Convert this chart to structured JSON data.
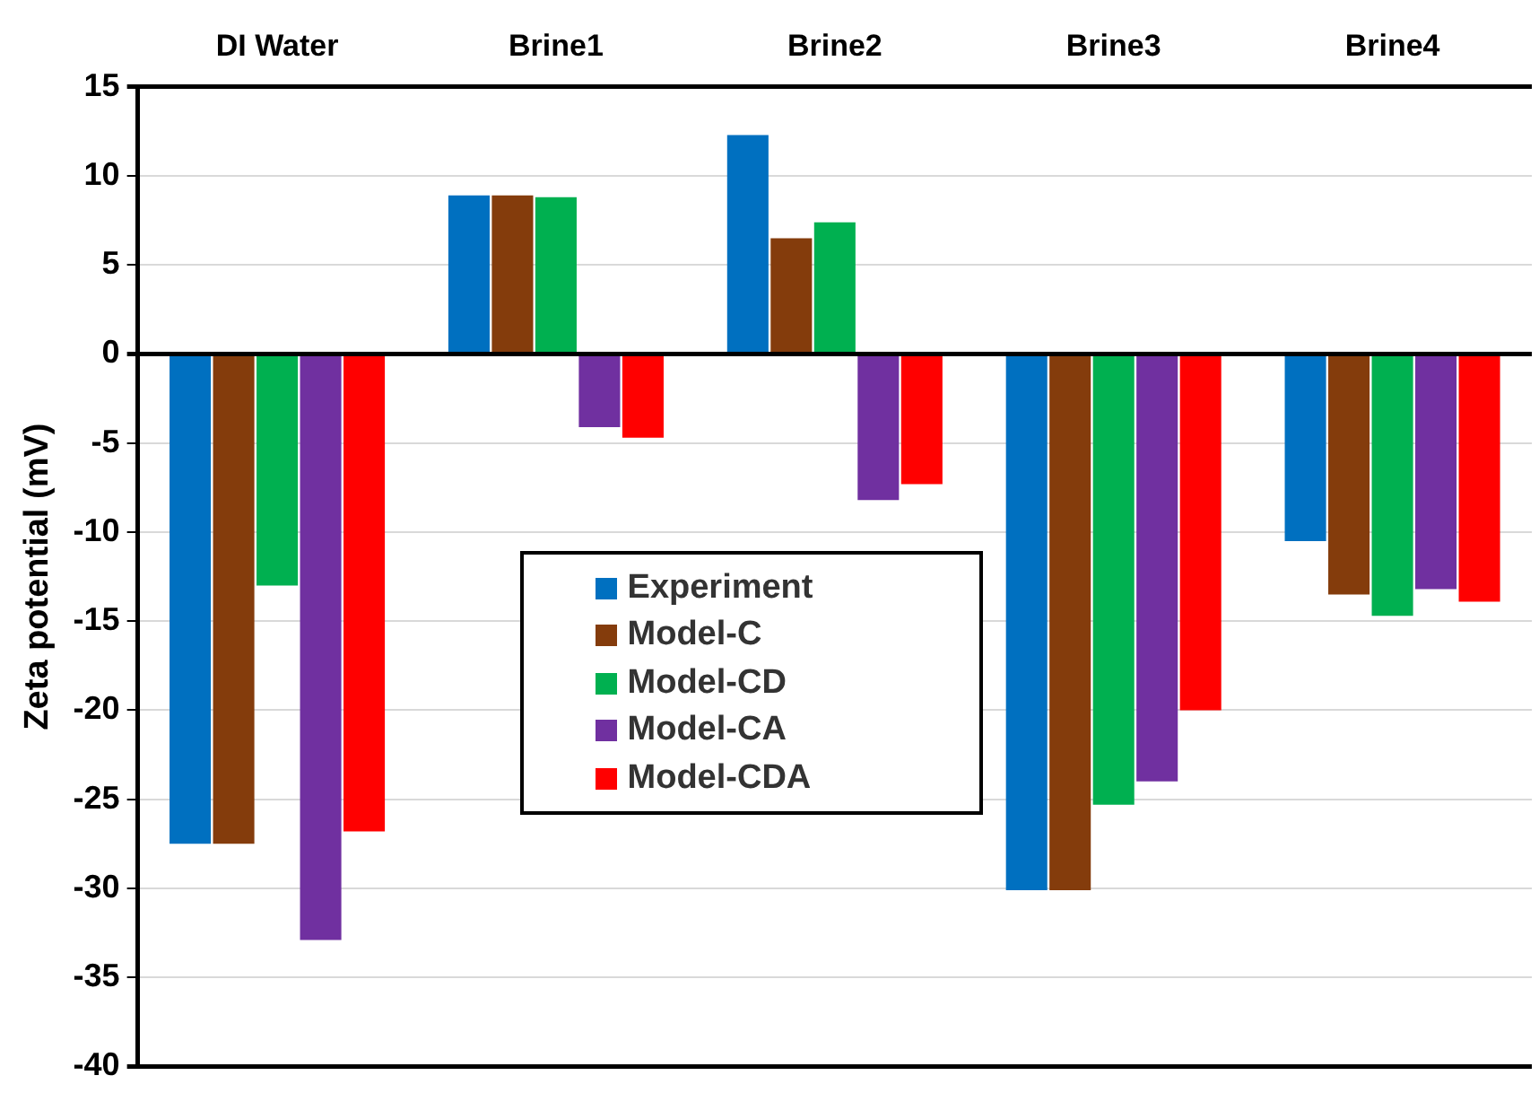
{
  "chart_data": {
    "type": "bar",
    "ylabel": "Zeta potential (mV)",
    "categories": [
      "DI Water",
      "Brine1",
      "Brine2",
      "Brine3",
      "Brine4"
    ],
    "series": [
      {
        "name": "Experiment",
        "color": "#0070c0",
        "values": [
          -27.5,
          8.9,
          12.3,
          -30.1,
          -10.5
        ]
      },
      {
        "name": "Model-C",
        "color": "#843c0c",
        "values": [
          -27.5,
          8.9,
          6.5,
          -30.1,
          -13.5
        ]
      },
      {
        "name": "Model-CD",
        "color": "#00b050",
        "values": [
          -13.0,
          8.8,
          7.4,
          -25.3,
          -14.7
        ]
      },
      {
        "name": "Model-CA",
        "color": "#7030a0",
        "values": [
          -32.9,
          -4.1,
          -8.2,
          -24.0,
          -13.2
        ]
      },
      {
        "name": "Model-CDA",
        "color": "#ff0000",
        "values": [
          -26.8,
          -4.7,
          -7.3,
          -20.0,
          -13.9
        ]
      }
    ],
    "ylim": [
      -40,
      15
    ],
    "yticks": [
      -40,
      -35,
      -30,
      -25,
      -20,
      -15,
      -10,
      -5,
      0,
      5,
      10,
      15
    ],
    "grid": "y",
    "legend": "bottom"
  }
}
